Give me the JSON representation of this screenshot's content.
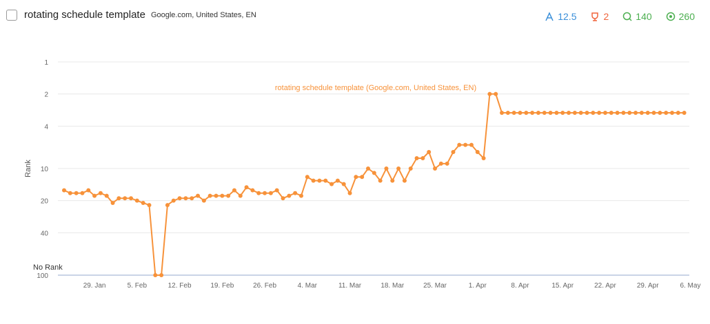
{
  "header": {
    "title": "rotating schedule template",
    "subtitle": "Google.com, United States, EN",
    "stats": [
      12.5,
      2,
      140,
      260
    ]
  },
  "chart_data": {
    "type": "line",
    "y_label": "Rank",
    "no_rank_label": "No Rank",
    "log_scale": true,
    "inverted": true,
    "grid": true,
    "ylim": [
      1,
      100
    ],
    "yticks": [
      1,
      2,
      4,
      10,
      20,
      40,
      100
    ],
    "categories": [
      null,
      null,
      null,
      null,
      null,
      "29. Jan",
      null,
      null,
      null,
      null,
      null,
      null,
      "5. Feb",
      null,
      null,
      null,
      null,
      null,
      null,
      "12. Feb",
      null,
      null,
      null,
      null,
      null,
      null,
      "19. Feb",
      null,
      null,
      null,
      null,
      null,
      null,
      "26. Feb",
      null,
      null,
      null,
      null,
      null,
      null,
      "4. Mar",
      null,
      null,
      null,
      null,
      null,
      null,
      "11. Mar",
      null,
      null,
      null,
      null,
      null,
      null,
      "18. Mar",
      null,
      null,
      null,
      null,
      null,
      null,
      "25. Mar",
      null,
      null,
      null,
      null,
      null,
      null,
      "1. Apr",
      null,
      null,
      null,
      null,
      null,
      null,
      "8. Apr",
      null,
      null,
      null,
      null,
      null,
      null,
      "15. Apr",
      null,
      null,
      null,
      null,
      null,
      null,
      "22. Apr",
      null,
      null,
      null,
      null,
      null,
      null,
      "29. Apr",
      null,
      null,
      null,
      null,
      null,
      null,
      "6. May"
    ],
    "series": [
      {
        "name": "rotating schedule template (Google.com, United States, EN)",
        "color": "#f7923a",
        "values": [
          16,
          17,
          17,
          17,
          16,
          18,
          17,
          18,
          21,
          19,
          19,
          19,
          20,
          21,
          22,
          100,
          100,
          22,
          20,
          19,
          19,
          19,
          18,
          20,
          18,
          18,
          18,
          18,
          16,
          18,
          15,
          16,
          17,
          17,
          17,
          16,
          19,
          18,
          17,
          18,
          12,
          13,
          13,
          13,
          14,
          13,
          14,
          17,
          12,
          12,
          10,
          11,
          13,
          10,
          13,
          10,
          13,
          10,
          8,
          8,
          7,
          10,
          9,
          9,
          7,
          6,
          6,
          6,
          7,
          8,
          2,
          2,
          3,
          3,
          3,
          3,
          3,
          3,
          3,
          3,
          3,
          3,
          3,
          3,
          3,
          3,
          3,
          3,
          3,
          3,
          3,
          3,
          3,
          3,
          3,
          3,
          3,
          3,
          3,
          3,
          3,
          3,
          3,
          null
        ]
      }
    ]
  }
}
